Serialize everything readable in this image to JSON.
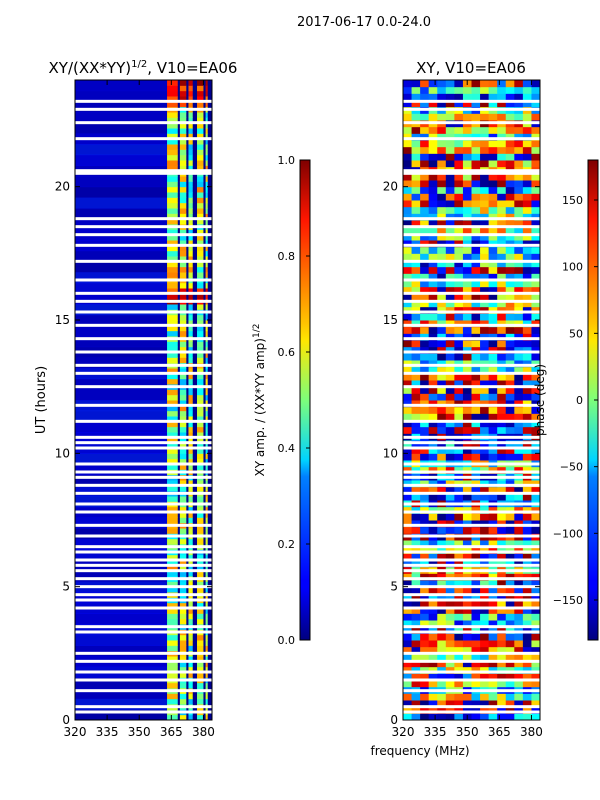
{
  "chart_data": {
    "suptitle": "2017-06-17 0.0-24.0",
    "shared_xlabel": "frequency (MHz)",
    "panels": [
      {
        "type": "heatmap",
        "title_main": "XY/(XX*YY)",
        "title_sup": "1/2",
        "title_rest": ", V10=EA06",
        "ylabel": "UT (hours)",
        "xlim": [
          320,
          384
        ],
        "ylim": [
          0,
          24
        ],
        "x_ticks": [
          "320",
          "335",
          "350",
          "365",
          "380"
        ],
        "y_ticks": [
          "0",
          "5",
          "10",
          "15",
          "20"
        ],
        "colorbar": {
          "label": "XY amp. / (XX*YY amp)",
          "label_sup": "1/2",
          "min": 0.0,
          "max": 1.0,
          "ticks": [
            "0.0",
            "0.2",
            "0.4",
            "0.6",
            "0.8",
            "1.0"
          ]
        }
      },
      {
        "type": "heatmap",
        "title": "XY, V10=EA06",
        "xlim": [
          320,
          384
        ],
        "ylim": [
          0,
          24
        ],
        "x_ticks": [
          "320",
          "335",
          "350",
          "365",
          "380"
        ],
        "y_ticks": [
          "0",
          "5",
          "10",
          "15",
          "20"
        ],
        "colorbar": {
          "label": "phase (deg)",
          "min": -180,
          "max": 180,
          "ticks": [
            "−150",
            "−100",
            "−50",
            "0",
            "50",
            "100",
            "150"
          ]
        }
      }
    ],
    "high_amplitude_bands_mhz": [
      [
        363,
        368
      ],
      [
        369,
        372
      ],
      [
        373,
        375
      ],
      [
        377,
        380
      ],
      [
        381,
        382
      ]
    ],
    "flagged_ut_hours": [
      0.3,
      0.5,
      1.1,
      1.5,
      1.8,
      2.2,
      2.5,
      3.3,
      3.5,
      4.2,
      4.5,
      4.7,
      5.0,
      5.3,
      5.6,
      5.8,
      6.0,
      6.3,
      6.5,
      6.9,
      7.3,
      7.8,
      8.1,
      8.5,
      8.8,
      9.1,
      9.3,
      9.6,
      10.2,
      10.4,
      10.6,
      11.2,
      11.8,
      12.5,
      13.0,
      13.3,
      13.8,
      14.3,
      14.8,
      15.3,
      15.7,
      16.0,
      16.5,
      17.2,
      17.8,
      18.2,
      18.5,
      18.8,
      20.5,
      20.6,
      21.8,
      22.4,
      22.9,
      23.2
    ]
  }
}
